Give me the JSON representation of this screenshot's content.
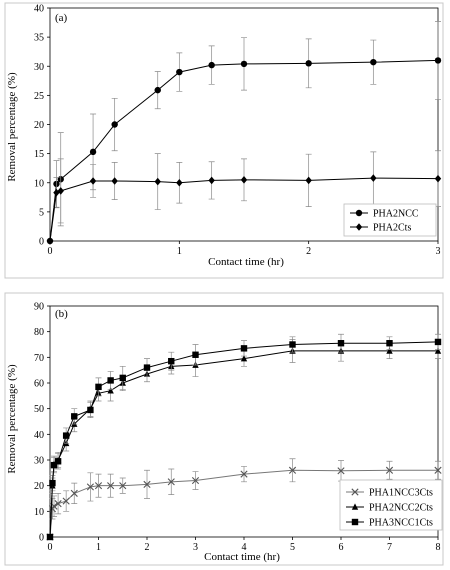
{
  "chart_data": [
    {
      "type": "line",
      "panel_label": "(a)",
      "xlabel": "Contact time (hr)",
      "ylabel": "Removal percentage (%)",
      "xlim": [
        0,
        3
      ],
      "ylim": [
        0,
        40
      ],
      "xticks": [
        0,
        1,
        2,
        3
      ],
      "yticks": [
        0,
        5,
        10,
        15,
        20,
        25,
        30,
        35,
        40
      ],
      "grid": false,
      "legend_position": "bottom-right",
      "series": [
        {
          "name": "PHA2NCC",
          "marker": "circle",
          "x": [
            0,
            0.05,
            0.083,
            0.333,
            0.5,
            0.833,
            1.0,
            1.25,
            1.5,
            2.0,
            2.5,
            3.0
          ],
          "y": [
            0,
            9.8,
            10.6,
            15.3,
            20.0,
            25.9,
            29.0,
            30.2,
            30.4,
            30.5,
            30.7,
            31.0
          ],
          "err": [
            0,
            4.0,
            8.0,
            6.5,
            4.5,
            3.2,
            3.3,
            3.3,
            4.5,
            4.2,
            3.8,
            6.7
          ]
        },
        {
          "name": "PHA2Cts",
          "marker": "diamond",
          "x": [
            0,
            0.05,
            0.083,
            0.333,
            0.5,
            0.833,
            1.0,
            1.25,
            1.5,
            2.0,
            2.5,
            3.0
          ],
          "y": [
            0,
            8.3,
            8.6,
            10.3,
            10.3,
            10.2,
            10.0,
            10.4,
            10.5,
            10.4,
            10.8,
            10.7
          ],
          "err": [
            0,
            2.6,
            5.5,
            2.8,
            3.2,
            4.8,
            3.5,
            3.2,
            3.6,
            4.5,
            4.5,
            4.8
          ]
        }
      ]
    },
    {
      "type": "line",
      "panel_label": "(b)",
      "xlabel": "Contact time (hr)",
      "ylabel": "Removal percentage (%)",
      "xlim": [
        0,
        8
      ],
      "ylim": [
        0,
        90
      ],
      "xticks": [
        0,
        1,
        2,
        3,
        4,
        5,
        6,
        7,
        8
      ],
      "yticks": [
        0,
        10,
        20,
        30,
        40,
        50,
        60,
        70,
        80,
        90
      ],
      "grid": false,
      "legend_position": "bottom-right",
      "series": [
        {
          "name": "PHA1NCC3Cts",
          "marker": "x",
          "x": [
            0,
            0.05,
            0.083,
            0.167,
            0.333,
            0.5,
            0.833,
            1.0,
            1.25,
            1.5,
            2.0,
            2.5,
            3.0,
            4.0,
            5.0,
            6.0,
            7.0,
            8.0
          ],
          "y": [
            0,
            11.0,
            12.0,
            13.0,
            14.0,
            17.0,
            19.5,
            20.0,
            20.0,
            20.0,
            20.5,
            21.5,
            22.0,
            24.5,
            26.0,
            25.8,
            26.0,
            26.0
          ],
          "err": [
            0,
            4.0,
            4.0,
            4.0,
            4.0,
            4.0,
            5.5,
            4.5,
            4.5,
            3.0,
            5.5,
            5.0,
            3.5,
            3.0,
            4.5,
            4.0,
            3.5,
            3.5
          ]
        },
        {
          "name": "PHA2NCC2Cts",
          "marker": "triangle",
          "x": [
            0,
            0.05,
            0.083,
            0.167,
            0.333,
            0.5,
            0.833,
            1.0,
            1.25,
            1.5,
            2.0,
            2.5,
            3.0,
            4.0,
            5.0,
            6.0,
            7.0,
            8.0
          ],
          "y": [
            0,
            20.0,
            28.5,
            30.0,
            36.5,
            44.0,
            50.0,
            56.0,
            57.0,
            60.0,
            63.5,
            66.5,
            67.0,
            69.5,
            72.5,
            72.5,
            72.5,
            72.5
          ],
          "err": [
            0,
            3.0,
            3.0,
            3.0,
            3.0,
            3.0,
            3.0,
            3.0,
            4.0,
            3.0,
            3.0,
            3.0,
            4.5,
            3.0,
            4.5,
            4.0,
            3.0,
            3.0
          ]
        },
        {
          "name": "PHA3NCC1Cts",
          "marker": "square",
          "x": [
            0,
            0.05,
            0.083,
            0.167,
            0.333,
            0.5,
            0.833,
            1.0,
            1.25,
            1.5,
            2.0,
            2.5,
            3.0,
            4.0,
            5.0,
            6.0,
            7.0,
            8.0
          ],
          "y": [
            0,
            21.0,
            28.0,
            29.5,
            39.5,
            47.0,
            49.5,
            58.5,
            61.0,
            62.0,
            66.0,
            68.5,
            71.0,
            73.5,
            75.0,
            75.5,
            75.5,
            76.0
          ],
          "err": [
            0,
            3.0,
            3.0,
            3.0,
            3.0,
            3.0,
            3.0,
            3.5,
            3.5,
            4.5,
            3.5,
            3.5,
            4.0,
            3.0,
            3.0,
            3.5,
            2.5,
            3.0
          ]
        }
      ]
    }
  ]
}
